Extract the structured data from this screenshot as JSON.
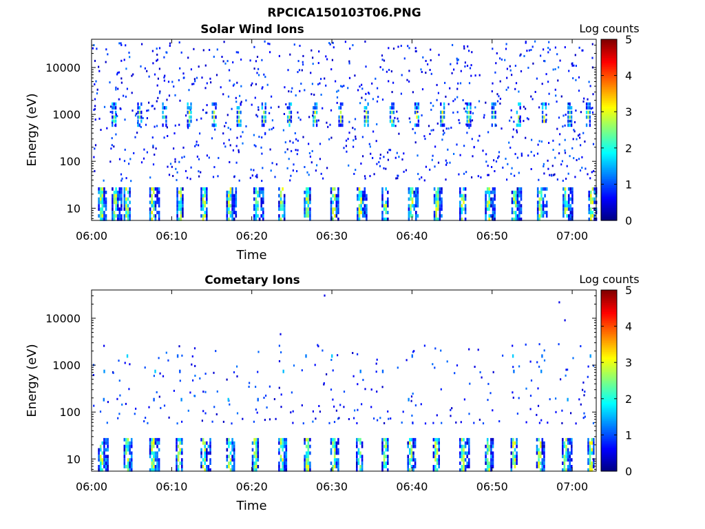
{
  "figure": {
    "title": "RPCICA150103T06.PNG"
  },
  "chart_data": [
    {
      "type": "heatmap",
      "title": "Solar Wind Ions",
      "xlabel": "Time",
      "ylabel": "Energy (eV)",
      "y_scale": "log",
      "ylim": [
        5.5,
        40000
      ],
      "yticks": [
        10,
        100,
        1000,
        10000
      ],
      "ytick_labels": [
        "10",
        "100",
        "1000",
        "10000"
      ],
      "xlim": [
        0,
        63
      ],
      "xticks": [
        0,
        10,
        20,
        30,
        40,
        50,
        60
      ],
      "xtick_labels": [
        "06:00",
        "06:10",
        "06:20",
        "06:30",
        "06:40",
        "06:50",
        "07:00"
      ],
      "colorbar": {
        "label": "Log counts",
        "range": [
          0,
          5
        ],
        "ticks": [
          "0",
          "1",
          "2",
          "3",
          "4",
          "5"
        ]
      },
      "bursts_low_energy_minutes": [
        0.8,
        2.5,
        4.0,
        7.2,
        10.6,
        13.6,
        16.8,
        20.2,
        23.3,
        26.5,
        29.8,
        33.1,
        36.2,
        39.5,
        42.7,
        45.9,
        49.1,
        52.4,
        55.6,
        58.8,
        62.0
      ],
      "bursts_1keV_minutes": [
        2.5,
        5.7,
        8.8,
        11.9,
        15.0,
        18.1,
        21.2,
        24.4,
        27.6,
        30.8,
        34.0,
        37.2,
        40.3,
        43.5,
        46.8,
        49.9,
        53.0,
        56.2,
        59.4,
        61.7
      ]
    },
    {
      "type": "heatmap",
      "title": "Cometary Ions",
      "xlabel": "Time",
      "ylabel": "Energy (eV)",
      "y_scale": "log",
      "ylim": [
        5.5,
        40000
      ],
      "yticks": [
        10,
        100,
        1000,
        10000
      ],
      "ytick_labels": [
        "10",
        "100",
        "1000",
        "10000"
      ],
      "xlim": [
        0,
        63
      ],
      "xticks": [
        0,
        10,
        20,
        30,
        40,
        50,
        60
      ],
      "xtick_labels": [
        "06:00",
        "06:10",
        "06:20",
        "06:30",
        "06:40",
        "06:50",
        "07:00"
      ],
      "colorbar": {
        "label": "Log counts",
        "range": [
          0,
          5
        ],
        "ticks": [
          "0",
          "1",
          "2",
          "3",
          "4",
          "5"
        ]
      },
      "bursts_low_energy_minutes": [
        0.8,
        4.0,
        7.2,
        10.5,
        13.6,
        16.8,
        20.0,
        23.3,
        26.5,
        29.8,
        33.0,
        36.2,
        39.4,
        42.6,
        45.9,
        49.1,
        52.3,
        55.5,
        58.7,
        61.9
      ]
    }
  ]
}
